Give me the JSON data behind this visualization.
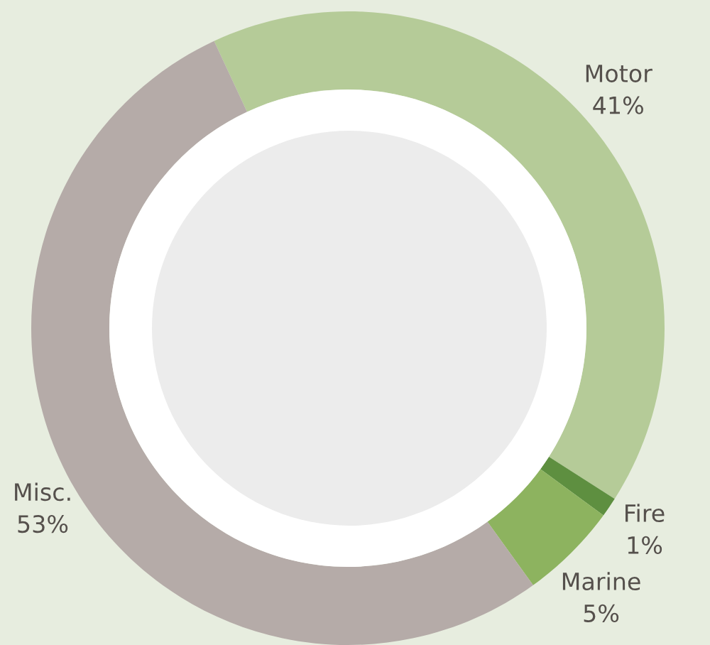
{
  "chart_data": {
    "type": "donut",
    "categories": [
      "Motor",
      "Fire",
      "Marine",
      "Misc."
    ],
    "values": [
      41,
      1,
      5,
      53
    ],
    "colors": [
      "#b5cb98",
      "#5e8f40",
      "#8db35f",
      "#b5aba8"
    ],
    "value_labels": [
      "41%",
      "1%",
      "5%",
      "53%"
    ]
  }
}
